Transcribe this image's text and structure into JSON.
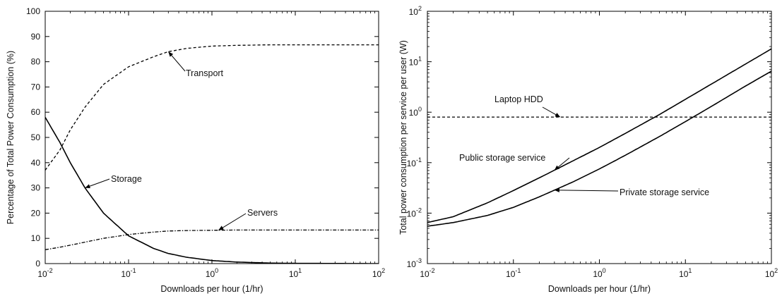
{
  "chart_data": [
    {
      "type": "line",
      "title": "",
      "xlabel": "Downloads per hour (1/hr)",
      "ylabel": "Percentage of Total Power Consumption (%)",
      "xscale": "log",
      "xlim": [
        0.01,
        100
      ],
      "ylim": [
        0,
        100
      ],
      "xticks": [
        0.01,
        0.1,
        1,
        10,
        100
      ],
      "yticks": [
        0,
        10,
        20,
        30,
        40,
        50,
        60,
        70,
        80,
        90,
        100
      ],
      "grid": false,
      "legend": "none",
      "series": [
        {
          "name": "Transport",
          "style": "dashed",
          "x": [
            0.01,
            0.015,
            0.02,
            0.03,
            0.05,
            0.1,
            0.2,
            0.3,
            0.5,
            1,
            2,
            5,
            10,
            100
          ],
          "y": [
            37,
            45,
            53,
            62,
            71,
            78,
            82,
            84,
            85.3,
            86.2,
            86.5,
            86.7,
            86.7,
            86.7
          ]
        },
        {
          "name": "Storage",
          "style": "solid",
          "x": [
            0.01,
            0.015,
            0.02,
            0.03,
            0.05,
            0.1,
            0.2,
            0.3,
            0.5,
            1,
            2,
            5,
            10,
            100
          ],
          "y": [
            58,
            48,
            40,
            30,
            20,
            11,
            6,
            4,
            2.5,
            1.2,
            0.6,
            0.2,
            0.1,
            0
          ]
        },
        {
          "name": "Servers",
          "style": "dash-dot",
          "x": [
            0.01,
            0.015,
            0.02,
            0.03,
            0.05,
            0.1,
            0.2,
            0.3,
            0.5,
            1,
            2,
            5,
            10,
            100
          ],
          "y": [
            5.5,
            6.5,
            7.3,
            8.5,
            10,
            11.5,
            12.5,
            12.9,
            13.1,
            13.2,
            13.3,
            13.3,
            13.3,
            13.3
          ]
        }
      ],
      "annotations": [
        {
          "text": "Transport",
          "target": "Transport"
        },
        {
          "text": "Storage",
          "target": "Storage"
        },
        {
          "text": "Servers",
          "target": "Servers"
        }
      ]
    },
    {
      "type": "line",
      "title": "",
      "xlabel": "Downloads per hour (1/hr)",
      "ylabel": "Total power consumption per service per user (W)",
      "xscale": "log",
      "yscale": "log",
      "xlim": [
        0.01,
        100
      ],
      "ylim": [
        0.001,
        100
      ],
      "xticks": [
        0.01,
        0.1,
        1,
        10,
        100
      ],
      "yticks": [
        0.001,
        0.01,
        0.1,
        1,
        10,
        100
      ],
      "grid": false,
      "legend": "none",
      "series": [
        {
          "name": "Laptop HDD",
          "style": "dashed",
          "x": [
            0.01,
            100
          ],
          "y": [
            0.8,
            0.8
          ]
        },
        {
          "name": "Public storage service",
          "style": "solid",
          "x": [
            0.01,
            0.02,
            0.05,
            0.1,
            0.2,
            0.5,
            1,
            2,
            5,
            10,
            20,
            50,
            100
          ],
          "y": [
            0.0065,
            0.0085,
            0.016,
            0.028,
            0.05,
            0.11,
            0.2,
            0.38,
            0.9,
            1.8,
            3.6,
            9,
            18
          ]
        },
        {
          "name": "Private storage service",
          "style": "solid",
          "x": [
            0.01,
            0.02,
            0.05,
            0.1,
            0.2,
            0.5,
            1,
            2,
            5,
            10,
            20,
            50,
            100
          ],
          "y": [
            0.0055,
            0.0065,
            0.009,
            0.013,
            0.021,
            0.042,
            0.075,
            0.14,
            0.33,
            0.65,
            1.3,
            3.3,
            6.5
          ]
        }
      ],
      "annotations": [
        {
          "text": "Laptop HDD",
          "target": "Laptop HDD"
        },
        {
          "text": "Public storage service",
          "target": "Public storage service"
        },
        {
          "text": "Private storage service",
          "target": "Private storage service"
        }
      ]
    }
  ]
}
